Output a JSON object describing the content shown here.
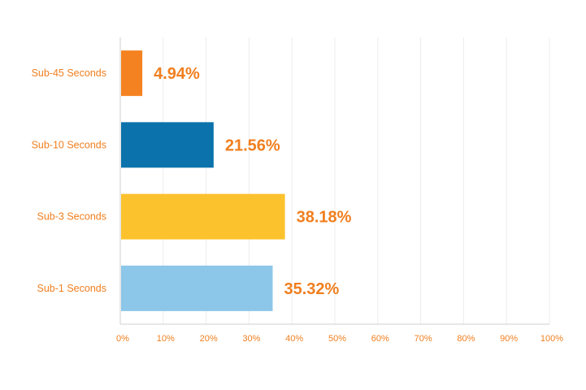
{
  "chart_data": {
    "type": "bar",
    "orientation": "horizontal",
    "title": "",
    "xlabel": "",
    "ylabel": "",
    "categories": [
      "Sub-45 Seconds",
      "Sub-10 Seconds",
      "Sub-3 Seconds",
      "Sub-1 Seconds"
    ],
    "values": [
      4.94,
      21.56,
      38.18,
      35.32
    ],
    "value_labels": [
      "4.94%",
      "21.56%",
      "38.18%",
      "35.32%"
    ],
    "bar_colors": [
      "#f58220",
      "#0b72ab",
      "#fcc22d",
      "#8cc6e8"
    ],
    "xlim": [
      0,
      100
    ],
    "x_ticks": [
      "0%",
      "10%",
      "20%",
      "30%",
      "40%",
      "50%",
      "60%",
      "70%",
      "80%",
      "90%",
      "100%"
    ],
    "grid": true,
    "legend": "none",
    "label_color": "#f07f1f"
  }
}
